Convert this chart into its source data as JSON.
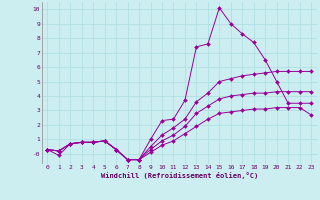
{
  "xlabel": "Windchill (Refroidissement éolien,°C)",
  "bg_color": "#cceef0",
  "line_color": "#990099",
  "xlim": [
    -0.5,
    23.5
  ],
  "ylim": [
    -0.7,
    10.5
  ],
  "xticks": [
    0,
    1,
    2,
    3,
    4,
    5,
    6,
    7,
    8,
    9,
    10,
    11,
    12,
    13,
    14,
    15,
    16,
    17,
    18,
    19,
    20,
    21,
    22,
    23
  ],
  "yticks": [
    0,
    1,
    2,
    3,
    4,
    5,
    6,
    7,
    8,
    9,
    10
  ],
  "ytick_labels": [
    "-0",
    "1",
    "2",
    "3",
    "4",
    "5",
    "6",
    "7",
    "8",
    "9",
    "10"
  ],
  "series": [
    {
      "x": [
        0,
        1,
        2,
        3,
        4,
        5,
        6,
        7,
        8,
        9,
        10,
        11,
        12,
        13,
        14,
        15,
        16,
        17,
        18,
        19,
        20,
        21,
        22,
        23
      ],
      "y": [
        0.3,
        -0.1,
        0.7,
        0.8,
        0.8,
        0.9,
        0.3,
        -0.4,
        -0.4,
        1.0,
        2.3,
        2.4,
        3.7,
        7.4,
        7.6,
        10.1,
        9.0,
        8.3,
        7.7,
        6.5,
        5.0,
        3.5,
        3.5,
        3.5
      ]
    },
    {
      "x": [
        0,
        1,
        2,
        3,
        4,
        5,
        6,
        7,
        8,
        9,
        10,
        11,
        12,
        13,
        14,
        15,
        16,
        17,
        18,
        19,
        20,
        21,
        22,
        23
      ],
      "y": [
        0.3,
        0.2,
        0.7,
        0.8,
        0.8,
        0.9,
        0.3,
        -0.4,
        -0.4,
        0.5,
        1.3,
        1.8,
        2.4,
        3.6,
        4.2,
        5.0,
        5.2,
        5.4,
        5.5,
        5.6,
        5.7,
        5.7,
        5.7,
        5.7
      ]
    },
    {
      "x": [
        0,
        1,
        2,
        3,
        4,
        5,
        6,
        7,
        8,
        9,
        10,
        11,
        12,
        13,
        14,
        15,
        16,
        17,
        18,
        19,
        20,
        21,
        22,
        23
      ],
      "y": [
        0.3,
        0.2,
        0.7,
        0.8,
        0.8,
        0.9,
        0.3,
        -0.4,
        -0.4,
        0.3,
        0.9,
        1.3,
        1.9,
        2.8,
        3.3,
        3.8,
        4.0,
        4.1,
        4.2,
        4.2,
        4.3,
        4.3,
        4.3,
        4.3
      ]
    },
    {
      "x": [
        0,
        1,
        2,
        3,
        4,
        5,
        6,
        7,
        8,
        9,
        10,
        11,
        12,
        13,
        14,
        15,
        16,
        17,
        18,
        19,
        20,
        21,
        22,
        23
      ],
      "y": [
        0.3,
        0.2,
        0.7,
        0.8,
        0.8,
        0.9,
        0.3,
        -0.4,
        -0.4,
        0.1,
        0.6,
        0.9,
        1.4,
        1.9,
        2.4,
        2.8,
        2.9,
        3.0,
        3.1,
        3.1,
        3.2,
        3.2,
        3.2,
        2.7
      ]
    }
  ]
}
